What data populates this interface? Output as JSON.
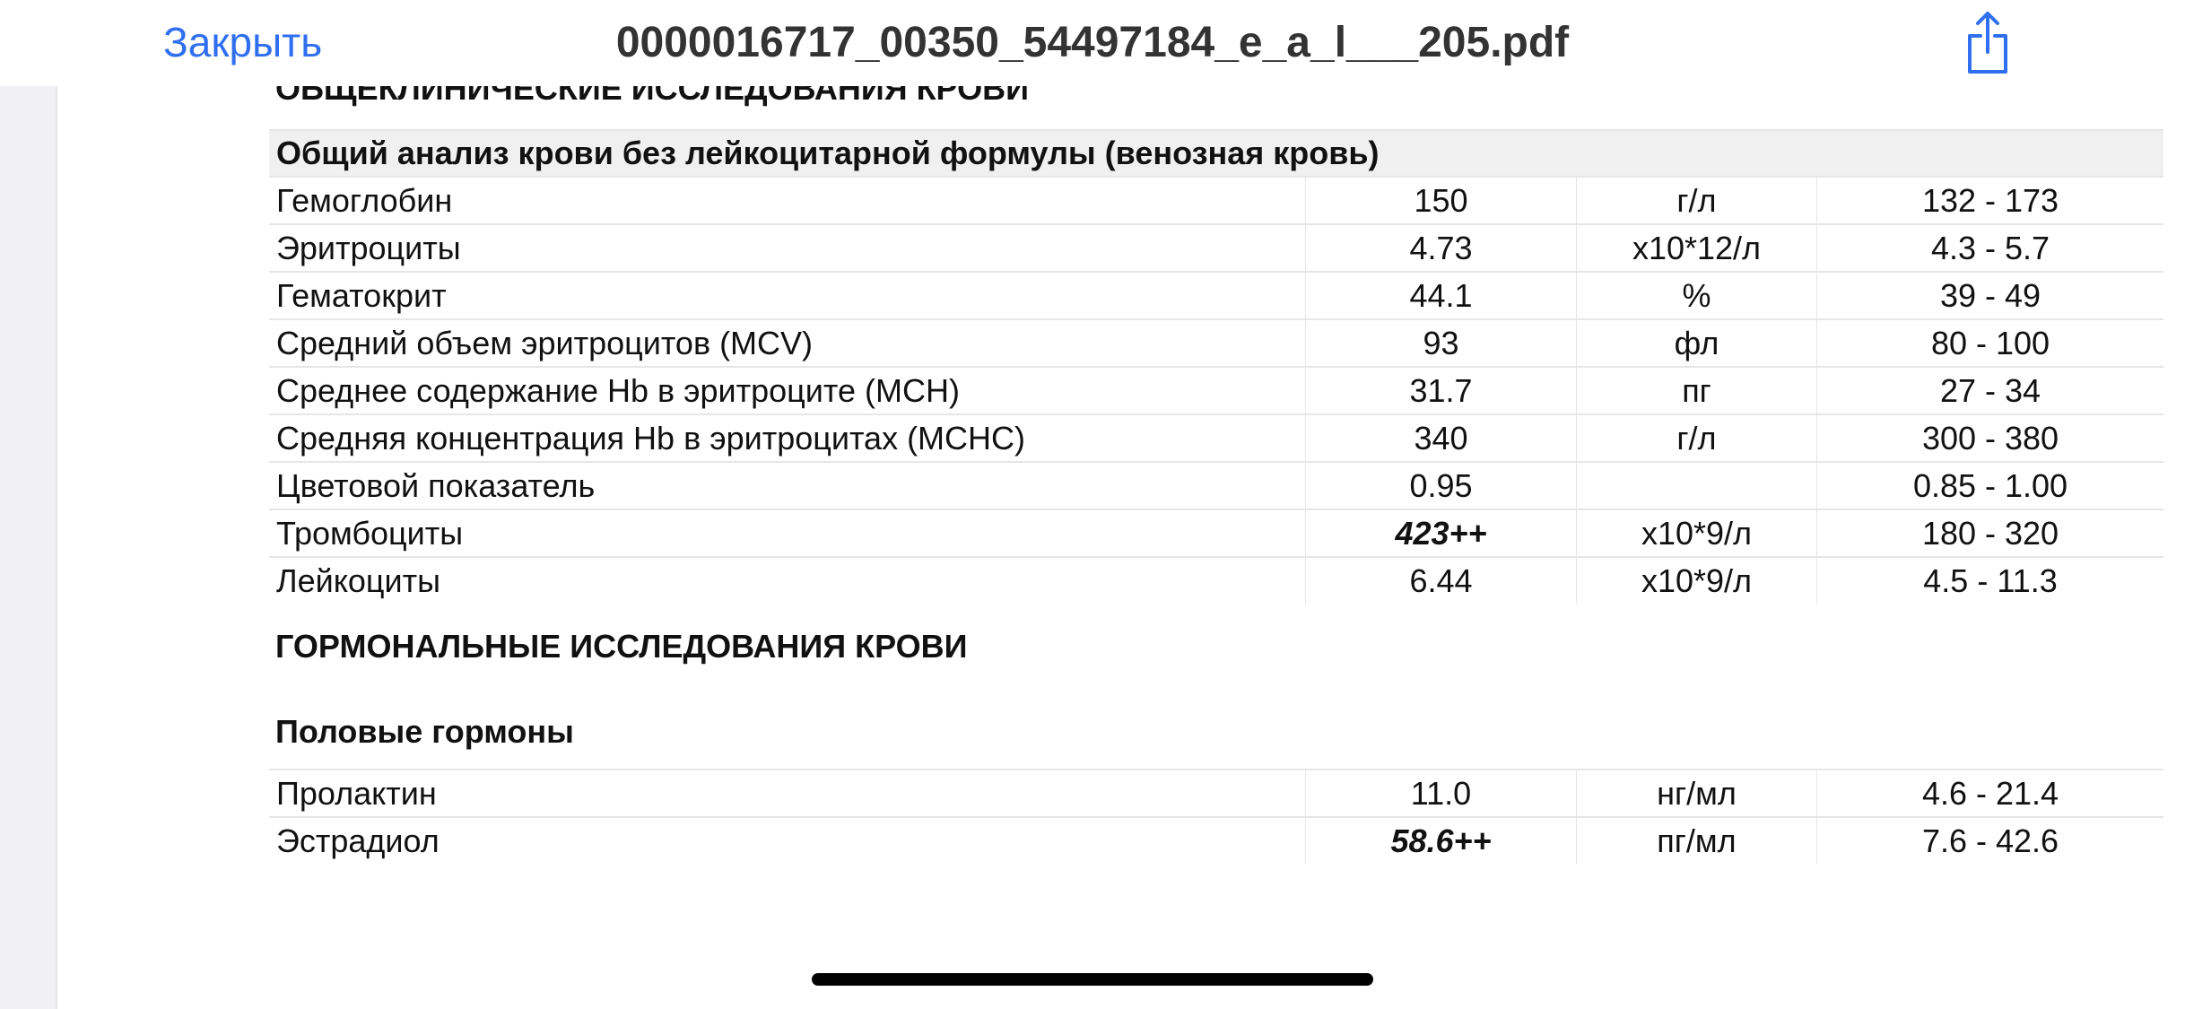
{
  "navbar": {
    "close_label": "Закрыть",
    "title": "0000016717_00350_54497184_e_a_l___205.pdf",
    "share_icon": "share-icon",
    "accent_color": "#2f6ff0"
  },
  "document": {
    "clipped_heading": "ОБЩЕКЛИНИЧЕСКИЕ ИССЛЕДОВАНИЯ КРОВИ",
    "cbc": {
      "title": "Общий анализ крови без лейкоцитарной формулы (венозная кровь)",
      "rows": [
        {
          "name": "Гемоглобин",
          "value": "150",
          "unit": "г/л",
          "ref": "132 - 173"
        },
        {
          "name": "Эритроциты",
          "value": "4.73",
          "unit": "x10*12/л",
          "ref": "4.3 - 5.7"
        },
        {
          "name": "Гематокрит",
          "value": "44.1",
          "unit": "%",
          "ref": "39 - 49"
        },
        {
          "name": "Средний объем эритроцитов (MCV)",
          "value": "93",
          "unit": "фл",
          "ref": "80 - 100"
        },
        {
          "name": "Среднее содержание Hb в эритроците (MCH)",
          "value": "31.7",
          "unit": "пг",
          "ref": "27 - 34"
        },
        {
          "name": "Средняя концентрация Hb в эритроцитах (MCHC)",
          "value": "340",
          "unit": "г/л",
          "ref": "300 - 380"
        },
        {
          "name": "Цветовой показатель",
          "value": "0.95",
          "unit": "",
          "ref": "0.85 - 1.00"
        },
        {
          "name": "Тромбоциты",
          "value": "423++",
          "unit": "x10*9/л",
          "ref": "180 - 320",
          "flag": true
        },
        {
          "name": "Лейкоциты",
          "value": "6.44",
          "unit": "x10*9/л",
          "ref": "4.5 - 11.3"
        }
      ]
    },
    "hormones_heading": "ГОРМОНАЛЬНЫЕ ИССЛЕДОВАНИЯ КРОВИ",
    "sex_hormones": {
      "title": "Половые гормоны",
      "rows": [
        {
          "name": "Пролактин",
          "value": "11.0",
          "unit": "нг/мл",
          "ref": "4.6 - 21.4"
        },
        {
          "name": "Эстрадиол",
          "value": "58.6++",
          "unit": "пг/мл",
          "ref": "7.6 - 42.6",
          "flag": true
        }
      ]
    }
  }
}
